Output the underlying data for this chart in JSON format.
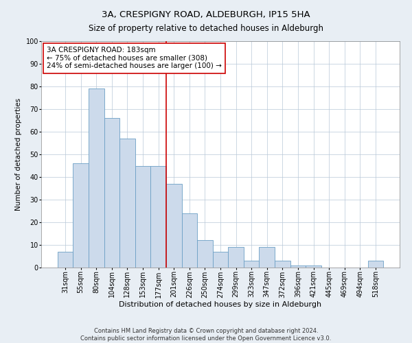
{
  "title": "3A, CRESPIGNY ROAD, ALDEBURGH, IP15 5HA",
  "subtitle": "Size of property relative to detached houses in Aldeburgh",
  "xlabel": "Distribution of detached houses by size in Aldeburgh",
  "ylabel": "Number of detached properties",
  "categories": [
    "31sqm",
    "55sqm",
    "80sqm",
    "104sqm",
    "128sqm",
    "153sqm",
    "177sqm",
    "201sqm",
    "226sqm",
    "250sqm",
    "274sqm",
    "299sqm",
    "323sqm",
    "347sqm",
    "372sqm",
    "396sqm",
    "421sqm",
    "445sqm",
    "469sqm",
    "494sqm",
    "518sqm"
  ],
  "values": [
    7,
    46,
    79,
    66,
    57,
    45,
    45,
    37,
    24,
    12,
    7,
    9,
    3,
    9,
    3,
    1,
    1,
    0,
    0,
    0,
    3
  ],
  "bar_color": "#ccdaeb",
  "bar_edge_color": "#6b9fc5",
  "property_line_index": 6,
  "property_line_color": "#cc0000",
  "annotation_text_line1": "3A CRESPIGNY ROAD: 183sqm",
  "annotation_text_line2": "← 75% of detached houses are smaller (308)",
  "annotation_text_line3": "24% of semi-detached houses are larger (100) →",
  "annotation_box_color": "#cc0000",
  "ylim": [
    0,
    100
  ],
  "yticks": [
    0,
    10,
    20,
    30,
    40,
    50,
    60,
    70,
    80,
    90,
    100
  ],
  "footer_line1": "Contains HM Land Registry data © Crown copyright and database right 2024.",
  "footer_line2": "Contains public sector information licensed under the Open Government Licence v3.0.",
  "background_color": "#e8eef4",
  "plot_background_color": "#ffffff",
  "grid_color": "#b8c8d8",
  "title_fontsize": 9.5,
  "subtitle_fontsize": 8.5,
  "xlabel_fontsize": 8,
  "ylabel_fontsize": 7.5,
  "tick_fontsize": 7,
  "annotation_fontsize": 7.5,
  "footer_fontsize": 6
}
